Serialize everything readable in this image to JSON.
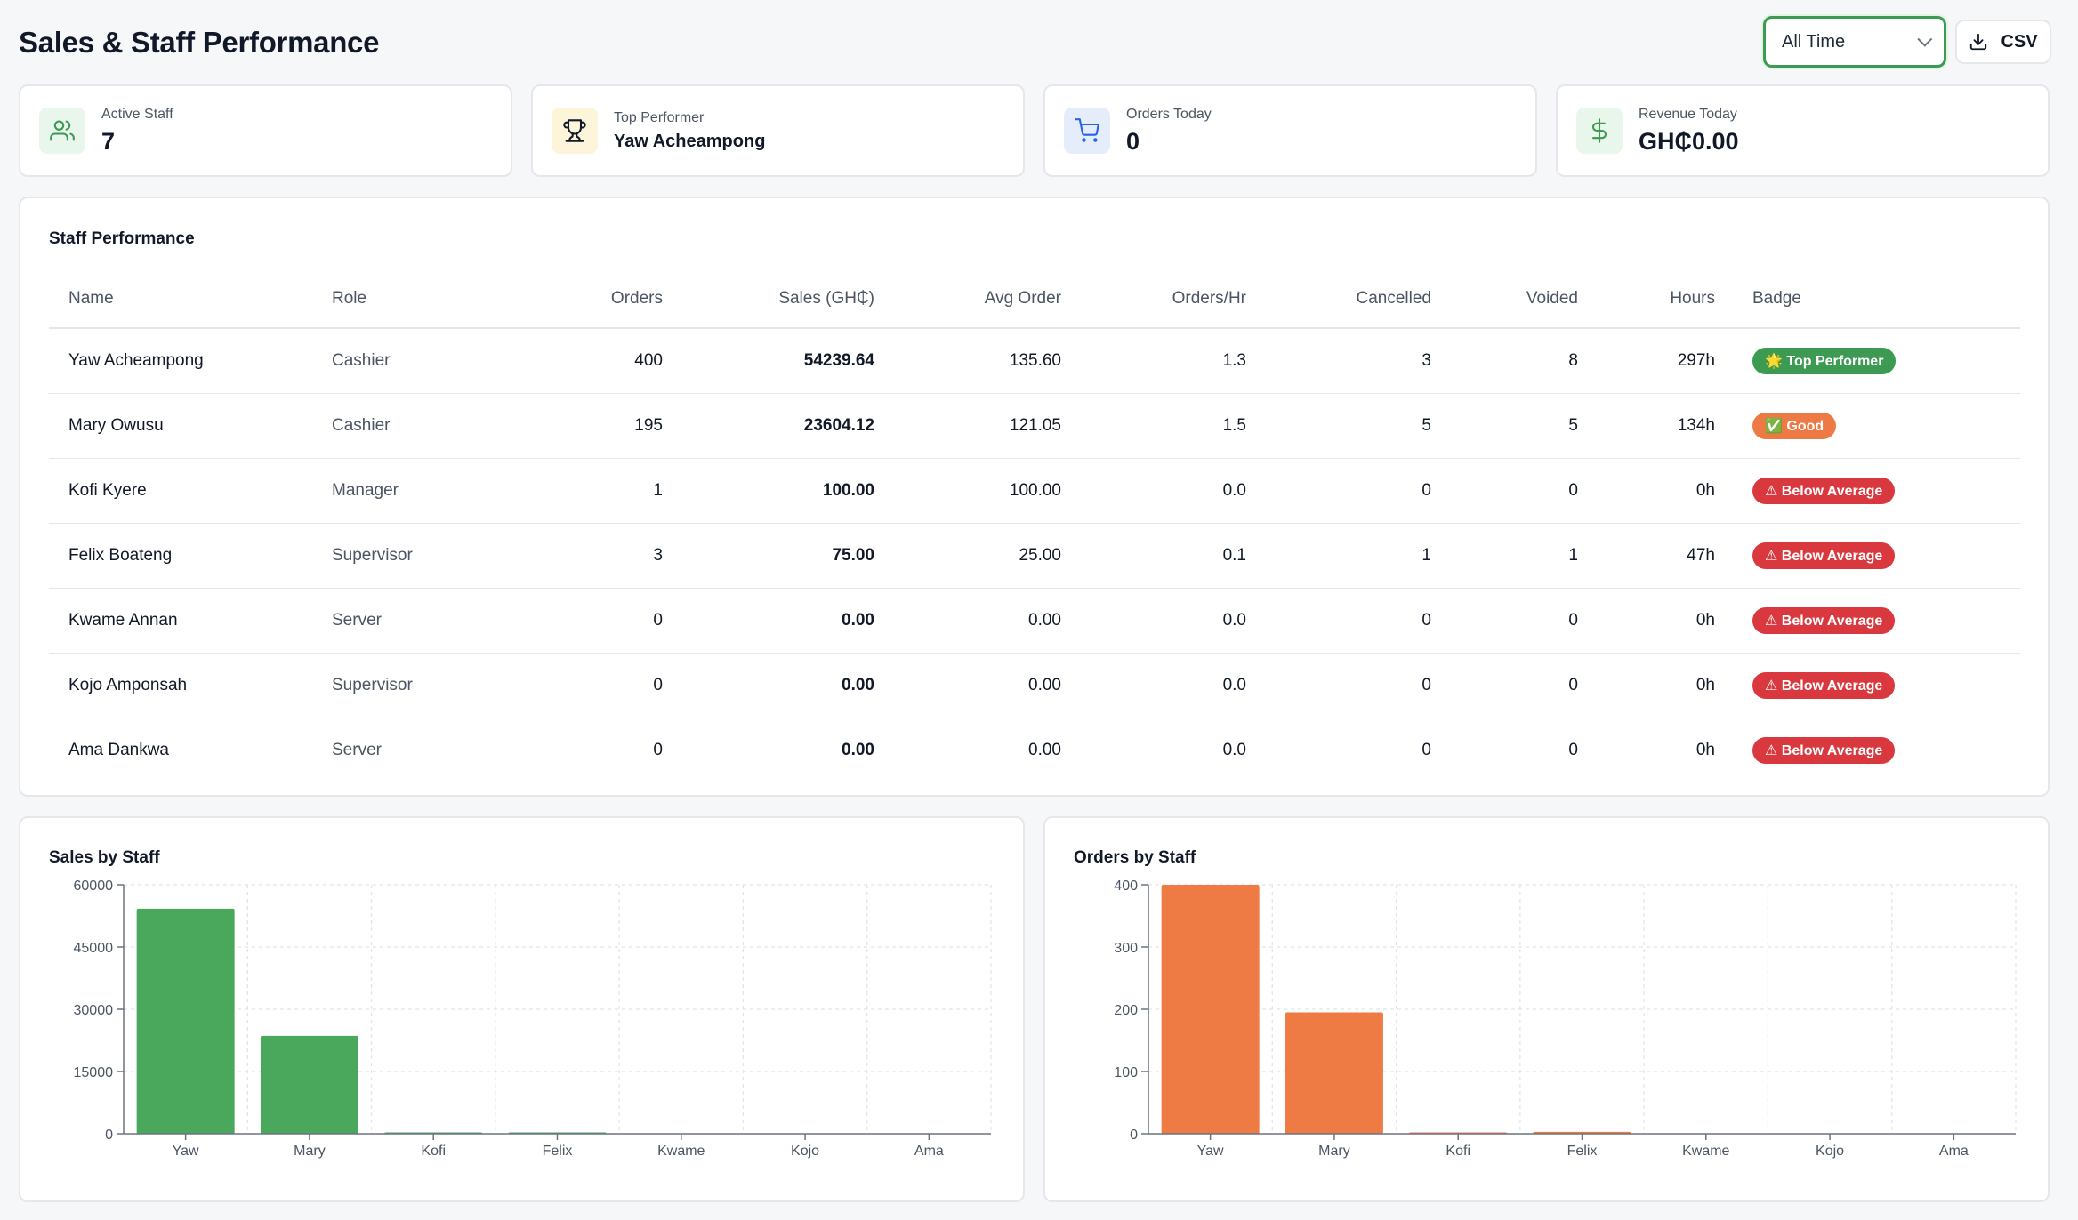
{
  "header": {
    "title": "Sales & Staff Performance",
    "range_select": "All Time",
    "csv_label": "CSV"
  },
  "cards": [
    {
      "label": "Active Staff",
      "value": "7",
      "icon": "users-icon",
      "icon_color": "#3c9a52",
      "icon_bg": "#e9f6ec"
    },
    {
      "label": "Top Performer",
      "value": "Yaw Acheampong",
      "icon": "trophy-icon",
      "icon_color": "#111827",
      "icon_bg": "#fdf5d9"
    },
    {
      "label": "Orders Today",
      "value": "0",
      "icon": "cart-icon",
      "icon_color": "#2563eb",
      "icon_bg": "#e5edfb"
    },
    {
      "label": "Revenue Today",
      "value": "GH₵0.00",
      "icon": "dollar-icon",
      "icon_color": "#3c9a52",
      "icon_bg": "#e9f6ec"
    }
  ],
  "performance": {
    "title": "Staff Performance",
    "columns": [
      "Name",
      "Role",
      "Orders",
      "Sales (GH₵)",
      "Avg Order",
      "Orders/Hr",
      "Cancelled",
      "Voided",
      "Hours",
      "Badge"
    ],
    "rows": [
      {
        "name": "Yaw Acheampong",
        "role": "Cashier",
        "orders": "400",
        "sales": "54239.64",
        "avg": "135.60",
        "oph": "1.3",
        "cancelled": "3",
        "voided": "8",
        "hours": "297h",
        "badge": "🌟 Top Performer",
        "badge_color": "#3c9a52"
      },
      {
        "name": "Mary Owusu",
        "role": "Cashier",
        "orders": "195",
        "sales": "23604.12",
        "avg": "121.05",
        "oph": "1.5",
        "cancelled": "5",
        "voided": "5",
        "hours": "134h",
        "badge": "✅ Good",
        "badge_color": "#ed7a45"
      },
      {
        "name": "Kofi Kyere",
        "role": "Manager",
        "orders": "1",
        "sales": "100.00",
        "avg": "100.00",
        "oph": "0.0",
        "cancelled": "0",
        "voided": "0",
        "hours": "0h",
        "badge": "⚠ Below Average",
        "badge_color": "#d9393e"
      },
      {
        "name": "Felix Boateng",
        "role": "Supervisor",
        "orders": "3",
        "sales": "75.00",
        "avg": "25.00",
        "oph": "0.1",
        "cancelled": "1",
        "voided": "1",
        "hours": "47h",
        "badge": "⚠ Below Average",
        "badge_color": "#d9393e"
      },
      {
        "name": "Kwame Annan",
        "role": "Server",
        "orders": "0",
        "sales": "0.00",
        "avg": "0.00",
        "oph": "0.0",
        "cancelled": "0",
        "voided": "0",
        "hours": "0h",
        "badge": "⚠ Below Average",
        "badge_color": "#d9393e"
      },
      {
        "name": "Kojo Amponsah",
        "role": "Supervisor",
        "orders": "0",
        "sales": "0.00",
        "avg": "0.00",
        "oph": "0.0",
        "cancelled": "0",
        "voided": "0",
        "hours": "0h",
        "badge": "⚠ Below Average",
        "badge_color": "#d9393e"
      },
      {
        "name": "Ama Dankwa",
        "role": "Server",
        "orders": "0",
        "sales": "0.00",
        "avg": "0.00",
        "oph": "0.0",
        "cancelled": "0",
        "voided": "0",
        "hours": "0h",
        "badge": "⚠ Below Average",
        "badge_color": "#d9393e"
      }
    ]
  },
  "chart_data": [
    {
      "type": "bar",
      "title": "Sales by Staff",
      "categories": [
        "Yaw",
        "Mary",
        "Kofi",
        "Felix",
        "Kwame",
        "Kojo",
        "Ama"
      ],
      "values": [
        54239.64,
        23604.12,
        100.0,
        75.0,
        0,
        0,
        0
      ],
      "ylim": [
        0,
        60000
      ],
      "yticks": [
        "0",
        "15000",
        "30000",
        "45000",
        "60000"
      ],
      "ytick_values": [
        0,
        15000,
        30000,
        45000,
        60000
      ],
      "color": "#4aa85c",
      "grid": true
    },
    {
      "type": "bar",
      "title": "Orders by Staff",
      "categories": [
        "Yaw",
        "Mary",
        "Kofi",
        "Felix",
        "Kwame",
        "Kojo",
        "Ama"
      ],
      "values": [
        400,
        195,
        1,
        3,
        0,
        0,
        0
      ],
      "ylim": [
        0,
        400
      ],
      "yticks": [
        "0",
        "100",
        "200",
        "300",
        "400"
      ],
      "ytick_values": [
        0,
        100,
        200,
        300,
        400
      ],
      "color": "#ee7b44",
      "grid": true
    }
  ]
}
